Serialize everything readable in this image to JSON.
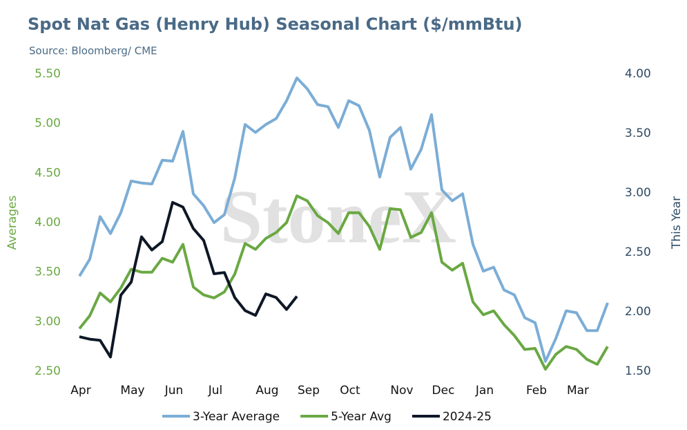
{
  "chart_data": {
    "type": "line",
    "title": "Spot Nat Gas (Henry Hub) Seasonal Chart ($/mmBtu)",
    "subtitle": "Source: Bloomberg/ CME",
    "watermark": "StoneX",
    "y_label": "Averages",
    "y2_label": "This Year",
    "categories": [
      "Apr",
      null,
      null,
      null,
      null,
      "May",
      null,
      null,
      null,
      "Jun",
      null,
      null,
      null,
      "Jul",
      null,
      null,
      null,
      null,
      "Aug",
      null,
      null,
      null,
      "Sep",
      null,
      null,
      null,
      "Oct",
      null,
      null,
      null,
      null,
      "Nov",
      null,
      null,
      null,
      "Dec",
      null,
      null,
      null,
      "Jan",
      null,
      null,
      null,
      null,
      "Feb",
      null,
      null,
      null,
      "Mar",
      null,
      null,
      null
    ],
    "ylim": [
      2.5,
      5.5
    ],
    "yticks": [
      {
        "value": 2.5,
        "label": "2.50"
      },
      {
        "value": 3,
        "label": "3.00"
      },
      {
        "value": 3.5,
        "label": "3.50"
      },
      {
        "value": 4,
        "label": "4.00"
      },
      {
        "value": 4.5,
        "label": "4.50"
      },
      {
        "value": 5,
        "label": "5.00"
      },
      {
        "value": 5.5,
        "label": "5.50"
      }
    ],
    "y2lim": [
      1.5,
      4.0
    ],
    "y2ticks": [
      {
        "value": 1.5,
        "label": "1.50"
      },
      {
        "value": 2,
        "label": "2.00"
      },
      {
        "value": 2.5,
        "label": "2.50"
      },
      {
        "value": 3,
        "label": "3.00"
      },
      {
        "value": 3.5,
        "label": "3.50"
      },
      {
        "value": 4,
        "label": "4.00"
      }
    ],
    "legend": "bottom",
    "series": [
      {
        "name": "3-Year Average",
        "color": "#7badd6",
        "values": [
          3.46,
          3.63,
          4.06,
          3.89,
          4.1,
          4.42,
          4.4,
          4.39,
          4.63,
          4.62,
          4.92,
          4.29,
          4.17,
          4.0,
          4.08,
          4.45,
          4.99,
          4.91,
          4.99,
          5.05,
          5.23,
          5.46,
          5.35,
          5.19,
          5.17,
          4.96,
          5.23,
          5.18,
          4.93,
          4.46,
          4.86,
          4.96,
          4.54,
          4.74,
          5.09,
          4.33,
          4.22,
          4.29,
          3.78,
          3.51,
          3.55,
          3.32,
          3.27,
          3.04,
          2.99,
          2.6,
          2.83,
          3.11,
          3.09,
          2.91,
          2.91,
          3.19
        ]
      },
      {
        "name": "5-Year Avg",
        "color": "#6aa843",
        "values": [
          2.93,
          3.06,
          3.29,
          3.2,
          3.34,
          3.53,
          3.5,
          3.5,
          3.64,
          3.6,
          3.78,
          3.35,
          3.27,
          3.24,
          3.3,
          3.48,
          3.79,
          3.73,
          3.84,
          3.9,
          4.0,
          4.27,
          4.22,
          4.07,
          4.0,
          3.89,
          4.1,
          4.1,
          3.96,
          3.73,
          4.14,
          4.13,
          3.85,
          3.9,
          4.1,
          3.6,
          3.52,
          3.59,
          3.2,
          3.07,
          3.11,
          2.97,
          2.86,
          2.72,
          2.73,
          2.52,
          2.67,
          2.75,
          2.72,
          2.62,
          2.57,
          2.75
        ]
      },
      {
        "name": "2024-25",
        "color": "#0e1726",
        "axis": "y2",
        "values": [
          1.79,
          1.77,
          1.76,
          1.62,
          2.14,
          2.25,
          2.63,
          2.52,
          2.59,
          2.92,
          2.88,
          2.7,
          2.6,
          2.32,
          2.33,
          2.12,
          2.01,
          1.97,
          2.15,
          2.12,
          2.02,
          2.13,
          null,
          null,
          null,
          null,
          null,
          null,
          null,
          null,
          null,
          null,
          null,
          null,
          null,
          null,
          null,
          null,
          null,
          null,
          null,
          null,
          null,
          null,
          null,
          null,
          null,
          null,
          null,
          null,
          null,
          null
        ]
      }
    ]
  }
}
